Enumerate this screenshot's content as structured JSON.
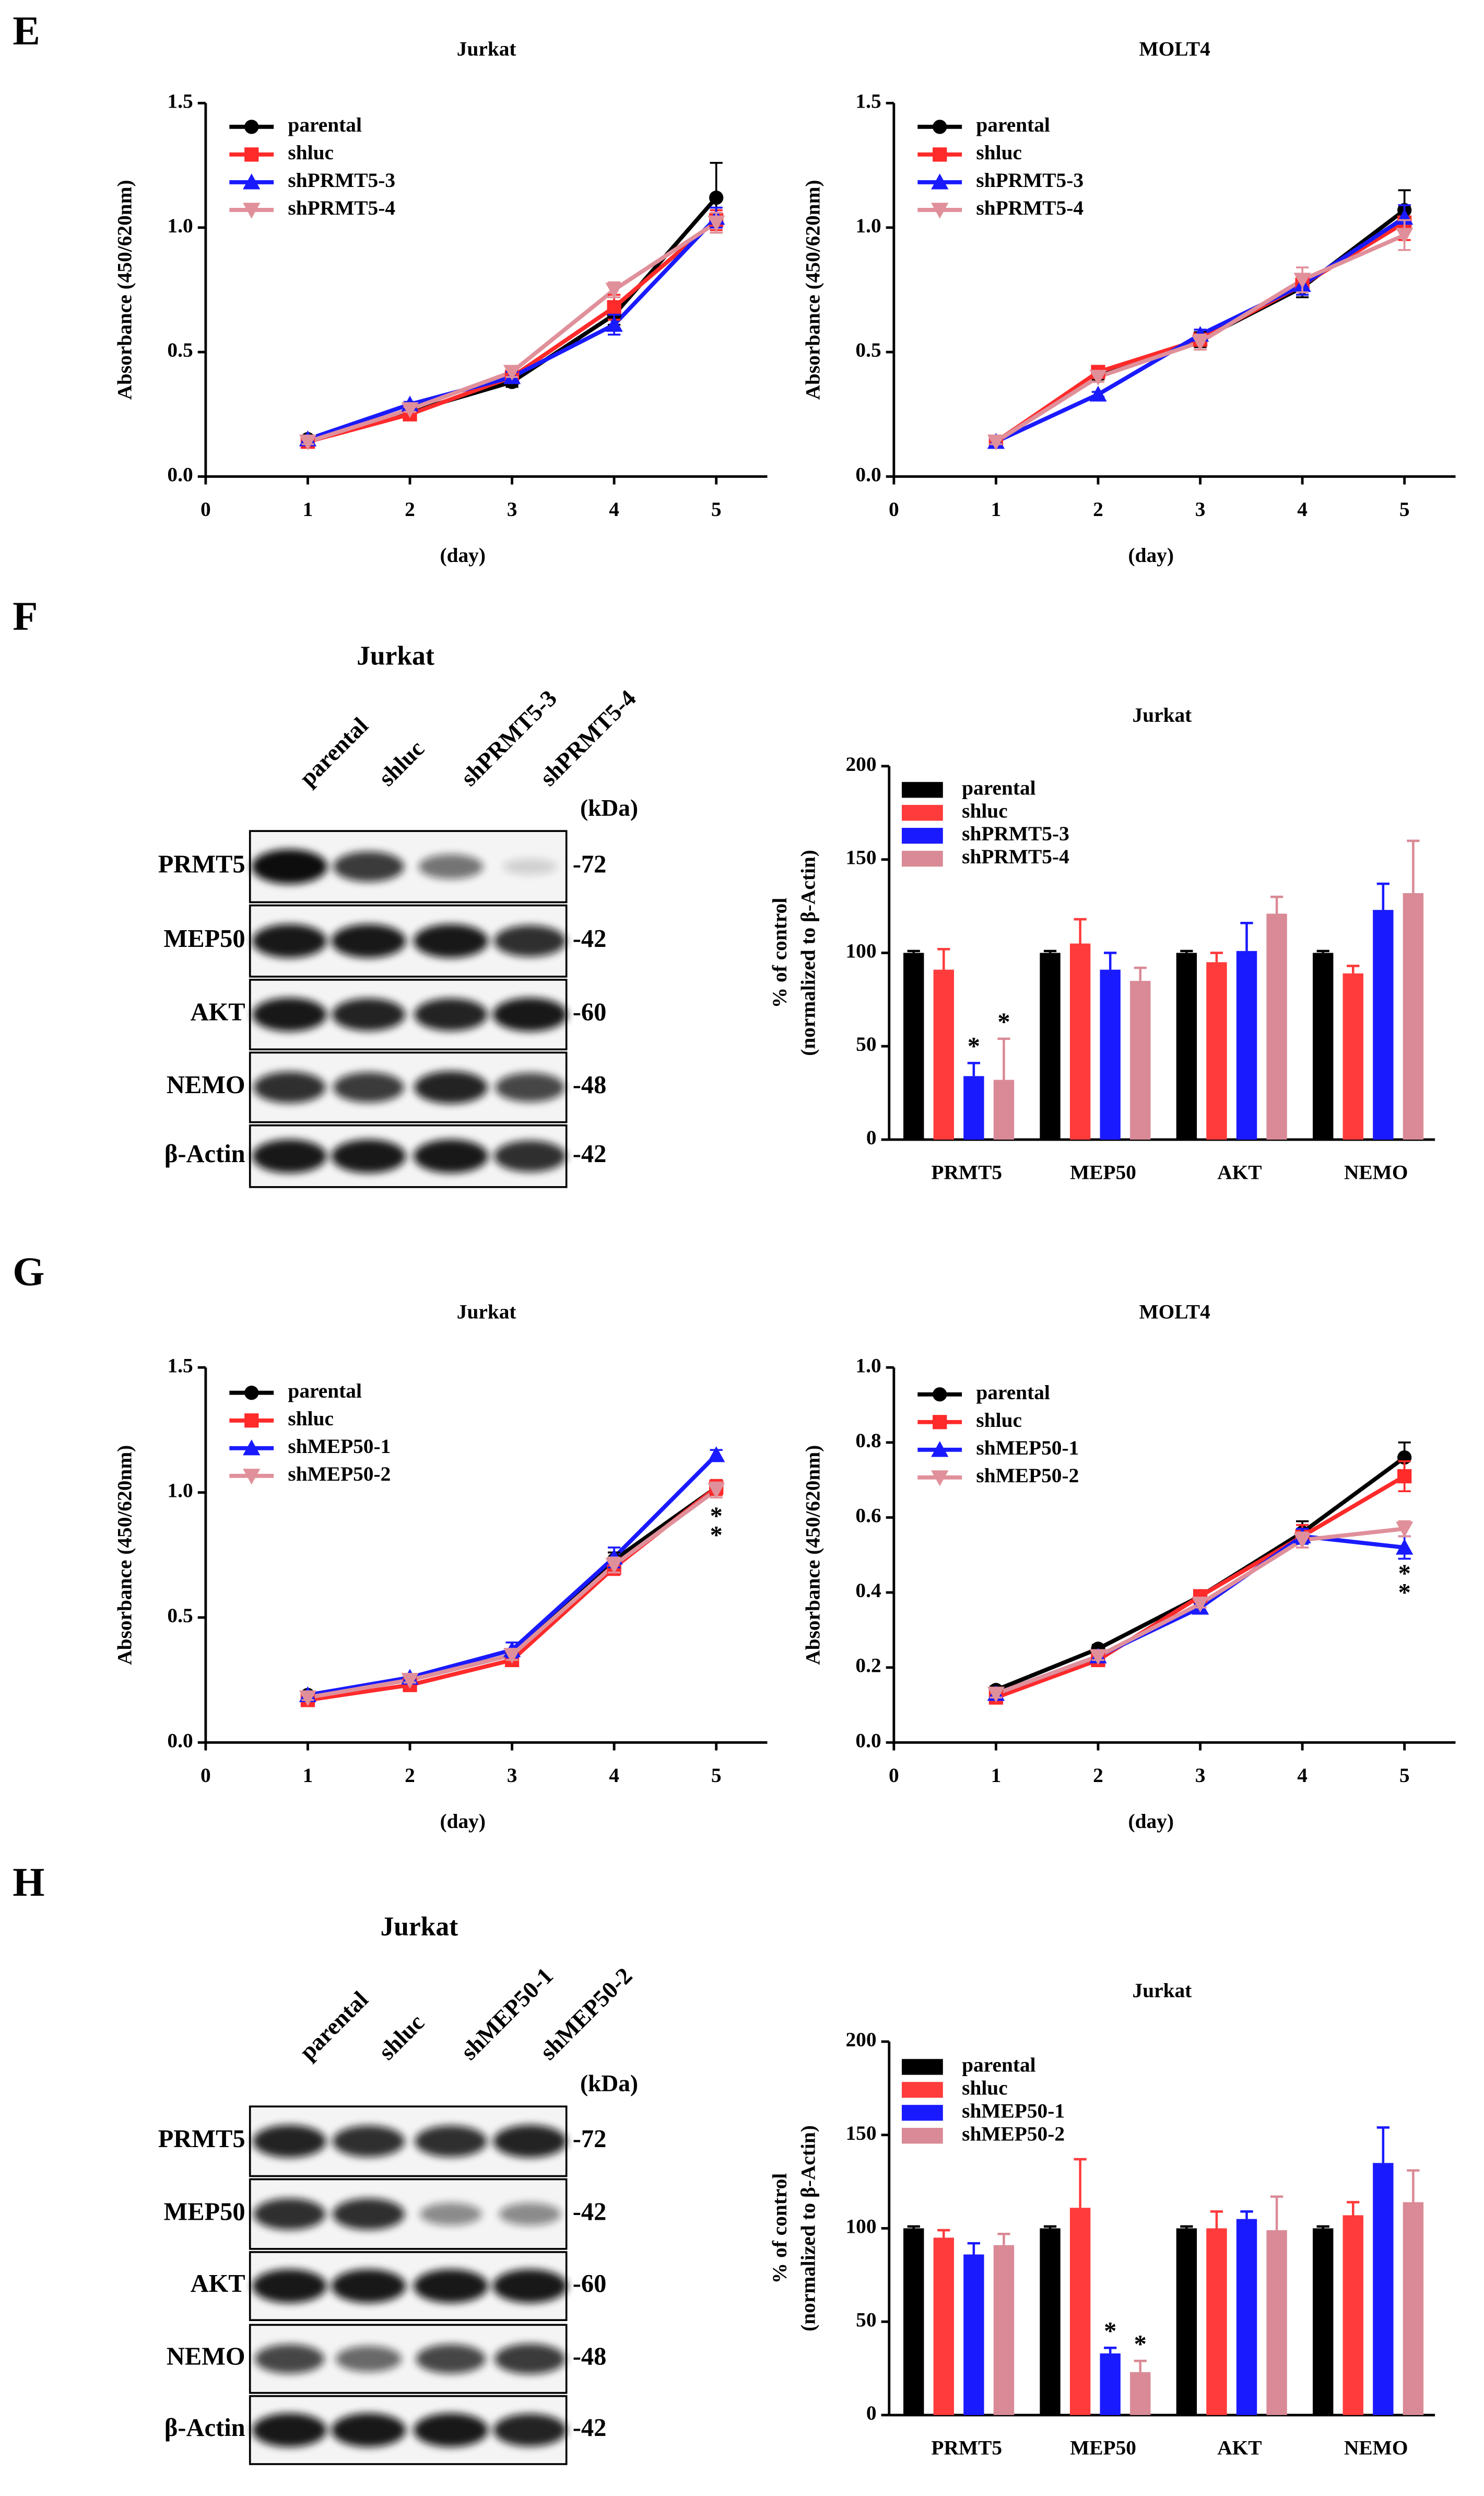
{
  "panels": [
    "E",
    "F",
    "G",
    "H"
  ],
  "blots": [
    {
      "title": "Jurkat",
      "lanes": [
        "parental",
        "shluc",
        "shPRMT5-3",
        "shPRMT5-4"
      ],
      "unit": "(kDa)",
      "rows": [
        {
          "name": "PRMT5",
          "kda": "-72"
        },
        {
          "name": "MEP50",
          "kda": "-42"
        },
        {
          "name": "AKT",
          "kda": "-60"
        },
        {
          "name": "NEMO",
          "kda": "-48"
        },
        {
          "name": "β-Actin",
          "kda": "-42"
        }
      ]
    },
    {
      "title": "Jurkat",
      "lanes": [
        "parental",
        "shluc",
        "shMEP50-1",
        "shMEP50-2"
      ],
      "unit": "(kDa)",
      "rows": [
        {
          "name": "PRMT5",
          "kda": "-72"
        },
        {
          "name": "MEP50",
          "kda": "-42"
        },
        {
          "name": "AKT",
          "kda": "-60"
        },
        {
          "name": "NEMO",
          "kda": "-48"
        },
        {
          "name": "β-Actin",
          "kda": "-42"
        }
      ]
    }
  ],
  "chart_data": [
    {
      "type": "line",
      "title": "Jurkat",
      "xlabel": "(day)",
      "ylabel": "Absorbance (450/620nm)",
      "x": [
        1,
        2,
        3,
        4,
        5
      ],
      "xlim": [
        0,
        5.5
      ],
      "xticks": [
        0,
        1,
        2,
        3,
        4,
        5
      ],
      "ylim": [
        0,
        1.5
      ],
      "yticks": [
        {
          "value": 0,
          "label": "0.0"
        },
        0.5,
        {
          "value": 1,
          "label": "1.0"
        },
        1.5
      ],
      "series": [
        {
          "name": "parental",
          "color": "#000000",
          "marker": "circle",
          "values": [
            0.15,
            0.26,
            0.38,
            0.65,
            1.12
          ],
          "errors": [
            0.01,
            0.01,
            0.02,
            0.04,
            0.14
          ]
        },
        {
          "name": "shluc",
          "color": "#ff2a2a",
          "marker": "square",
          "values": [
            0.14,
            0.25,
            0.4,
            0.68,
            1.03
          ],
          "errors": [
            0.01,
            0.01,
            0.02,
            0.05,
            0.04
          ]
        },
        {
          "name": "shPRMT5-3",
          "color": "#1a1aff",
          "marker": "triangle",
          "values": [
            0.15,
            0.29,
            0.4,
            0.61,
            1.04
          ],
          "errors": [
            0.01,
            0.01,
            0.02,
            0.04,
            0.04
          ]
        },
        {
          "name": "shPRMT5-4",
          "color": "#e0909a",
          "marker": "triangle-down",
          "values": [
            0.14,
            0.27,
            0.42,
            0.75,
            1.02
          ],
          "errors": [
            0.01,
            0.01,
            0.02,
            0.03,
            0.04
          ]
        }
      ]
    },
    {
      "type": "line",
      "title": "MOLT4",
      "xlabel": "(day)",
      "ylabel": "Absorbance (450/620nm)",
      "x": [
        1,
        2,
        3,
        4,
        5
      ],
      "xlim": [
        0,
        5.5
      ],
      "xticks": [
        0,
        1,
        2,
        3,
        4,
        5
      ],
      "ylim": [
        0,
        1.5
      ],
      "yticks": [
        {
          "value": 0,
          "label": "0.0"
        },
        0.5,
        {
          "value": 1,
          "label": "1.0"
        },
        1.5
      ],
      "series": [
        {
          "name": "parental",
          "color": "#000000",
          "marker": "circle",
          "values": [
            0.14,
            0.41,
            0.55,
            0.76,
            1.07
          ],
          "errors": [
            0.01,
            0.02,
            0.03,
            0.04,
            0.08
          ]
        },
        {
          "name": "shluc",
          "color": "#ff2a2a",
          "marker": "square",
          "values": [
            0.14,
            0.42,
            0.55,
            0.77,
            1.02
          ],
          "errors": [
            0.01,
            0.02,
            0.04,
            0.03,
            0.07
          ]
        },
        {
          "name": "shPRMT5-3",
          "color": "#1a1aff",
          "marker": "triangle",
          "values": [
            0.14,
            0.33,
            0.57,
            0.77,
            1.04
          ],
          "errors": [
            0.01,
            0.01,
            0.02,
            0.04,
            0.05
          ]
        },
        {
          "name": "shPRMT5-4",
          "color": "#e0909a",
          "marker": "triangle-down",
          "values": [
            0.14,
            0.4,
            0.54,
            0.79,
            0.97
          ],
          "errors": [
            0.01,
            0.02,
            0.03,
            0.05,
            0.06
          ]
        }
      ]
    },
    {
      "type": "bar",
      "title": "Jurkat",
      "ylabel": [
        "% of control",
        "(normalized to β-Actin)"
      ],
      "categories": [
        "PRMT5",
        "MEP50",
        "AKT",
        "NEMO"
      ],
      "ylim": [
        0,
        200
      ],
      "yticks": [
        0,
        50,
        100,
        150,
        200
      ],
      "series": [
        {
          "name": "parental",
          "color": "#000000",
          "values": [
            100,
            100,
            100,
            100
          ],
          "errors": [
            1,
            1,
            1,
            1
          ]
        },
        {
          "name": "shluc",
          "color": "#ff3b3b",
          "values": [
            91,
            105,
            95,
            89
          ],
          "errors": [
            11,
            13,
            5,
            4
          ]
        },
        {
          "name": "shPRMT5-3",
          "color": "#1a1aff",
          "values": [
            34,
            91,
            101,
            123
          ],
          "errors": [
            7,
            9,
            15,
            14
          ],
          "significance": [
            "*",
            null,
            null,
            null
          ]
        },
        {
          "name": "shPRMT5-4",
          "color": "#d98a96",
          "values": [
            32,
            85,
            121,
            132
          ],
          "errors": [
            22,
            7,
            9,
            28
          ],
          "significance": [
            "*",
            null,
            null,
            null
          ]
        }
      ]
    },
    {
      "type": "line",
      "title": "Jurkat",
      "xlabel": "(day)",
      "ylabel": "Absorbance (450/620nm)",
      "x": [
        1,
        2,
        3,
        4,
        5
      ],
      "xlim": [
        0,
        5.5
      ],
      "xticks": [
        0,
        1,
        2,
        3,
        4,
        5
      ],
      "ylim": [
        0,
        1.5
      ],
      "yticks": [
        {
          "value": 0,
          "label": "0.0"
        },
        0.5,
        {
          "value": 1,
          "label": "1.0"
        },
        1.5
      ],
      "series": [
        {
          "name": "parental",
          "color": "#000000",
          "marker": "circle",
          "values": [
            0.19,
            0.25,
            0.35,
            0.73,
            1.02
          ],
          "errors": [
            0.01,
            0.01,
            0.02,
            0.03,
            0.03
          ]
        },
        {
          "name": "shluc",
          "color": "#ff2a2a",
          "marker": "square",
          "values": [
            0.17,
            0.23,
            0.33,
            0.7,
            1.02
          ],
          "errors": [
            0.01,
            0.01,
            0.02,
            0.03,
            0.03
          ]
        },
        {
          "name": "shMEP50-1",
          "color": "#1a1aff",
          "marker": "triangle",
          "values": [
            0.19,
            0.26,
            0.37,
            0.74,
            1.15
          ],
          "errors": [
            0.01,
            0.01,
            0.03,
            0.04,
            0.02
          ],
          "significance": [
            null,
            null,
            null,
            null,
            "*"
          ]
        },
        {
          "name": "shMEP50-2",
          "color": "#e0909a",
          "marker": "triangle-down",
          "values": [
            0.18,
            0.25,
            0.35,
            0.71,
            1.01
          ],
          "errors": [
            0.01,
            0.01,
            0.02,
            0.03,
            0.03
          ],
          "significance": [
            null,
            null,
            null,
            null,
            "*"
          ]
        }
      ]
    },
    {
      "type": "line",
      "title": "MOLT4",
      "xlabel": "(day)",
      "ylabel": "Absorbance (450/620nm)",
      "x": [
        1,
        2,
        3,
        4,
        5
      ],
      "xlim": [
        0,
        5.5
      ],
      "xticks": [
        0,
        1,
        2,
        3,
        4,
        5
      ],
      "ylim": [
        0,
        1
      ],
      "yticks": [
        {
          "value": 0,
          "label": "0.0"
        },
        0.2,
        0.4,
        0.6,
        0.8,
        {
          "value": 1,
          "label": "1.0"
        }
      ],
      "series": [
        {
          "name": "parental",
          "color": "#000000",
          "marker": "circle",
          "values": [
            0.14,
            0.25,
            0.39,
            0.56,
            0.76
          ],
          "errors": [
            0.01,
            0.01,
            0.01,
            0.03,
            0.04
          ]
        },
        {
          "name": "shluc",
          "color": "#ff2a2a",
          "marker": "square",
          "values": [
            0.12,
            0.22,
            0.39,
            0.55,
            0.71
          ],
          "errors": [
            0.01,
            0.01,
            0.01,
            0.03,
            0.04
          ]
        },
        {
          "name": "shMEP50-1",
          "color": "#1a1aff",
          "marker": "triangle",
          "values": [
            0.13,
            0.23,
            0.36,
            0.55,
            0.52
          ],
          "errors": [
            0.01,
            0.01,
            0.01,
            0.02,
            0.03
          ],
          "significance": [
            null,
            null,
            null,
            null,
            "*"
          ]
        },
        {
          "name": "shMEP50-2",
          "color": "#e0909a",
          "marker": "triangle-down",
          "values": [
            0.13,
            0.23,
            0.37,
            0.54,
            0.57
          ],
          "errors": [
            0.01,
            0.01,
            0.01,
            0.02,
            0.02
          ],
          "significance": [
            null,
            null,
            null,
            null,
            "*"
          ]
        }
      ]
    },
    {
      "type": "bar",
      "title": "Jurkat",
      "ylabel": [
        "% of control",
        "(normalized to β-Actin)"
      ],
      "categories": [
        "PRMT5",
        "MEP50",
        "AKT",
        "NEMO"
      ],
      "ylim": [
        0,
        200
      ],
      "yticks": [
        0,
        50,
        100,
        150,
        200
      ],
      "series": [
        {
          "name": "parental",
          "color": "#000000",
          "values": [
            100,
            100,
            100,
            100
          ],
          "errors": [
            1,
            1,
            1,
            1
          ]
        },
        {
          "name": "shluc",
          "color": "#ff3b3b",
          "values": [
            95,
            111,
            100,
            107
          ],
          "errors": [
            4,
            26,
            9,
            7
          ]
        },
        {
          "name": "shMEP50-1",
          "color": "#1a1aff",
          "values": [
            86,
            33,
            105,
            135
          ],
          "errors": [
            6,
            3,
            4,
            19
          ],
          "significance": [
            null,
            "*",
            null,
            null
          ]
        },
        {
          "name": "shMEP50-2",
          "color": "#d98a96",
          "values": [
            91,
            23,
            99,
            114
          ],
          "errors": [
            6,
            6,
            18,
            17
          ],
          "significance": [
            null,
            "*",
            null,
            null
          ]
        }
      ]
    }
  ]
}
